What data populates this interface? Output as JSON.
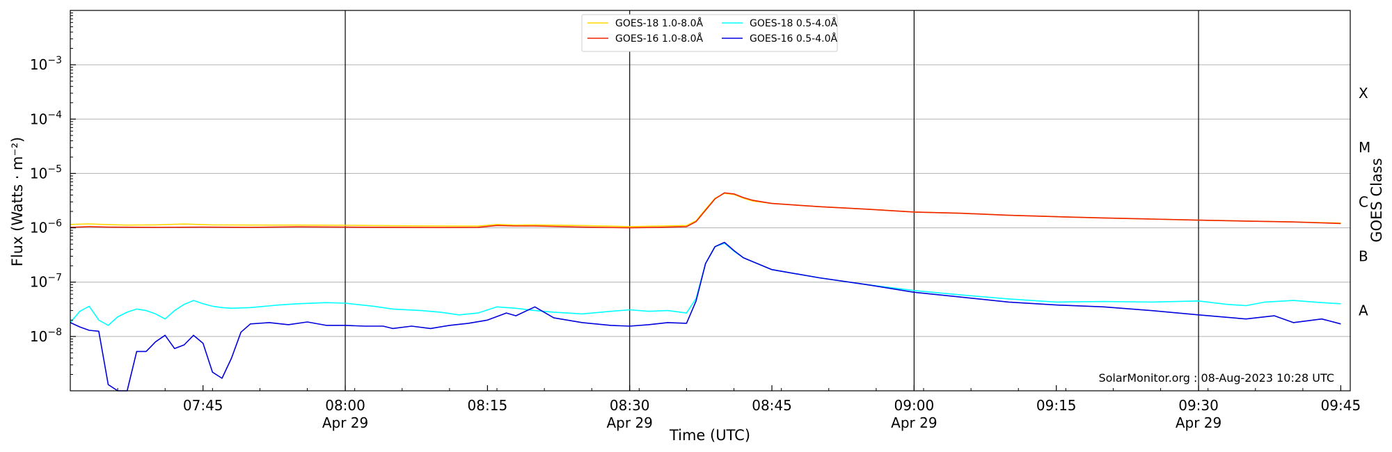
{
  "chart_data": {
    "type": "line",
    "title": "",
    "xlabel": "Time (UTC)",
    "ylabel": "Flux (Watts · m⁻²)",
    "y2label": "GOES Class",
    "y_scale": "log",
    "ylim": [
      1e-09,
      0.01
    ],
    "xlim": [
      "07:31",
      "09:46"
    ],
    "grid": "horizontal at decades",
    "legend_position": "top-center",
    "credit": "SolarMonitor.org : 08-Aug-2023 10:28 UTC",
    "y_ticks": [
      {
        "value": 1e-08,
        "base": "10",
        "exp": "−8"
      },
      {
        "value": 1e-07,
        "base": "10",
        "exp": "−7"
      },
      {
        "value": 1e-06,
        "base": "10",
        "exp": "−6"
      },
      {
        "value": 1e-05,
        "base": "10",
        "exp": "−5"
      },
      {
        "value": 0.0001,
        "base": "10",
        "exp": "−4"
      },
      {
        "value": 0.001,
        "base": "10",
        "exp": "−3"
      }
    ],
    "goes_classes": [
      {
        "label": "A",
        "value": 3e-08
      },
      {
        "label": "B",
        "value": 3e-07
      },
      {
        "label": "C",
        "value": 3e-06
      },
      {
        "label": "M",
        "value": 3e-05
      },
      {
        "label": "X",
        "value": 0.0003
      }
    ],
    "x_ticks": [
      {
        "time": "07:45",
        "label": "07:45",
        "date": ""
      },
      {
        "time": "08:00",
        "label": "08:00",
        "date": "Apr 29"
      },
      {
        "time": "08:15",
        "label": "08:15",
        "date": ""
      },
      {
        "time": "08:30",
        "label": "08:30",
        "date": "Apr 29"
      },
      {
        "time": "08:45",
        "label": "08:45",
        "date": ""
      },
      {
        "time": "09:00",
        "label": "09:00",
        "date": "Apr 29"
      },
      {
        "time": "09:15",
        "label": "09:15",
        "date": ""
      },
      {
        "time": "09:30",
        "label": "09:30",
        "date": "Apr 29"
      },
      {
        "time": "09:45",
        "label": "09:45",
        "date": ""
      }
    ],
    "vertical_lines": [
      "08:00",
      "08:30",
      "09:00",
      "09:30"
    ],
    "series": [
      {
        "name": "GOES-18 1.0-8.0Å",
        "color": "#ffd700",
        "x": [
          "07:31",
          "07:33",
          "07:35",
          "07:37",
          "07:40",
          "07:43",
          "07:46",
          "07:50",
          "07:55",
          "08:00",
          "08:05",
          "08:10",
          "08:14",
          "08:16",
          "08:18",
          "08:20",
          "08:25",
          "08:30",
          "08:33",
          "08:36",
          "08:37",
          "08:38",
          "08:39",
          "08:40",
          "08:41",
          "08:42",
          "08:43",
          "08:45",
          "08:50",
          "08:55",
          "09:00",
          "09:05",
          "09:10",
          "09:15",
          "09:20",
          "09:25",
          "09:30",
          "09:35",
          "09:40",
          "09:45"
        ],
        "y": [
          1.15e-06,
          1.18e-06,
          1.14e-06,
          1.12e-06,
          1.13e-06,
          1.17e-06,
          1.13e-06,
          1.12e-06,
          1.12e-06,
          1.11e-06,
          1.09e-06,
          1.08e-06,
          1.08e-06,
          1.15e-06,
          1.12e-06,
          1.13e-06,
          1.1e-06,
          1.05e-06,
          1.08e-06,
          1.1e-06,
          1.35e-06,
          2.2e-06,
          3.5e-06,
          4.3e-06,
          4.1e-06,
          3.5e-06,
          3.1e-06,
          2.8e-06,
          2.45e-06,
          2.2e-06,
          1.95e-06,
          1.85e-06,
          1.7e-06,
          1.6e-06,
          1.52e-06,
          1.45e-06,
          1.38e-06,
          1.33e-06,
          1.28e-06,
          1.22e-06
        ]
      },
      {
        "name": "GOES-16 1.0-8.0Å",
        "color": "#ee2200",
        "x": [
          "07:31",
          "07:33",
          "07:35",
          "07:40",
          "07:45",
          "07:50",
          "07:55",
          "08:00",
          "08:05",
          "08:10",
          "08:14",
          "08:16",
          "08:18",
          "08:20",
          "08:25",
          "08:30",
          "08:33",
          "08:36",
          "08:37",
          "08:38",
          "08:39",
          "08:40",
          "08:41",
          "08:42",
          "08:43",
          "08:45",
          "08:50",
          "08:55",
          "09:00",
          "09:05",
          "09:10",
          "09:15",
          "09:20",
          "09:25",
          "09:30",
          "09:35",
          "09:40",
          "09:45"
        ],
        "y": [
          1.02e-06,
          1.05e-06,
          1.03e-06,
          1.02e-06,
          1.03e-06,
          1.02e-06,
          1.04e-06,
          1.03e-06,
          1.02e-06,
          1.01e-06,
          1.02e-06,
          1.1e-06,
          1.08e-06,
          1.08e-06,
          1.03e-06,
          1e-06,
          1.02e-06,
          1.05e-06,
          1.3e-06,
          2.1e-06,
          3.4e-06,
          4.4e-06,
          4.2e-06,
          3.6e-06,
          3.2e-06,
          2.8e-06,
          2.45e-06,
          2.2e-06,
          1.95e-06,
          1.85e-06,
          1.7e-06,
          1.6e-06,
          1.52e-06,
          1.45e-06,
          1.38e-06,
          1.33e-06,
          1.28e-06,
          1.2e-06
        ]
      },
      {
        "name": "GOES-18 0.5-4.0Å",
        "color": "#00ffff",
        "x": [
          "07:31",
          "07:32",
          "07:33",
          "07:34",
          "07:35",
          "07:36",
          "07:37",
          "07:38",
          "07:39",
          "07:40",
          "07:41",
          "07:42",
          "07:43",
          "07:44",
          "07:45",
          "07:46",
          "07:47",
          "07:48",
          "07:50",
          "07:53",
          "07:55",
          "07:58",
          "08:00",
          "08:03",
          "08:05",
          "08:08",
          "08:10",
          "08:12",
          "08:14",
          "08:16",
          "08:18",
          "08:20",
          "08:22",
          "08:25",
          "08:28",
          "08:30",
          "08:32",
          "08:34",
          "08:36",
          "08:37",
          "08:38",
          "08:39",
          "08:40",
          "08:41",
          "08:42",
          "08:45",
          "08:50",
          "08:55",
          "09:00",
          "09:05",
          "09:10",
          "09:15",
          "09:20",
          "09:25",
          "09:30",
          "09:33",
          "09:35",
          "09:37",
          "09:40",
          "09:43",
          "09:45"
        ],
        "y": [
          1.8e-08,
          2.9e-08,
          3.6e-08,
          2e-08,
          1.6e-08,
          2.3e-08,
          2.8e-08,
          3.2e-08,
          3e-08,
          2.6e-08,
          2.1e-08,
          3e-08,
          3.9e-08,
          4.6e-08,
          4e-08,
          3.6e-08,
          3.4e-08,
          3.3e-08,
          3.4e-08,
          3.8e-08,
          4e-08,
          4.2e-08,
          4.1e-08,
          3.6e-08,
          3.2e-08,
          3e-08,
          2.8e-08,
          2.5e-08,
          2.7e-08,
          3.5e-08,
          3.3e-08,
          3e-08,
          2.8e-08,
          2.6e-08,
          2.9e-08,
          3.1e-08,
          2.9e-08,
          3e-08,
          2.7e-08,
          5e-08,
          2.2e-07,
          4.5e-07,
          5.2e-07,
          3.7e-07,
          2.8e-07,
          1.7e-07,
          1.2e-07,
          9e-08,
          7e-08,
          5.8e-08,
          4.9e-08,
          4.3e-08,
          4.4e-08,
          4.3e-08,
          4.5e-08,
          3.9e-08,
          3.7e-08,
          4.3e-08,
          4.6e-08,
          4.2e-08,
          4e-08
        ]
      },
      {
        "name": "GOES-16 0.5-4.0Å",
        "color": "#0000dd",
        "x": [
          "07:31",
          "07:32",
          "07:33",
          "07:34",
          "07:35",
          "07:36",
          "07:37",
          "07:38",
          "07:39",
          "07:40",
          "07:41",
          "07:42",
          "07:43",
          "07:44",
          "07:45",
          "07:46",
          "07:47",
          "07:48",
          "07:49",
          "07:50",
          "07:52",
          "07:54",
          "07:56",
          "07:58",
          "08:00",
          "08:02",
          "08:04",
          "08:05",
          "08:07",
          "08:09",
          "08:11",
          "08:13",
          "08:15",
          "08:17",
          "08:18",
          "08:20",
          "08:22",
          "08:25",
          "08:28",
          "08:30",
          "08:32",
          "08:34",
          "08:36",
          "08:37",
          "08:38",
          "08:39",
          "08:40",
          "08:41",
          "08:42",
          "08:45",
          "08:50",
          "08:55",
          "09:00",
          "09:05",
          "09:10",
          "09:15",
          "09:20",
          "09:25",
          "09:30",
          "09:35",
          "09:38",
          "09:40",
          "09:43",
          "09:45"
        ],
        "y": [
          1.8e-08,
          1.5e-08,
          1.3e-08,
          1.25e-08,
          1.3e-09,
          1e-09,
          1e-09,
          5.3e-09,
          5.3e-09,
          8e-09,
          1.05e-08,
          6e-09,
          7e-09,
          1.05e-08,
          7.5e-09,
          2.2e-09,
          1.7e-09,
          4e-09,
          1.2e-08,
          1.7e-08,
          1.8e-08,
          1.65e-08,
          1.85e-08,
          1.6e-08,
          1.6e-08,
          1.55e-08,
          1.55e-08,
          1.4e-08,
          1.55e-08,
          1.4e-08,
          1.6e-08,
          1.75e-08,
          2e-08,
          2.7e-08,
          2.4e-08,
          3.5e-08,
          2.2e-08,
          1.8e-08,
          1.6e-08,
          1.55e-08,
          1.65e-08,
          1.8e-08,
          1.75e-08,
          4.5e-08,
          2.2e-07,
          4.5e-07,
          5.4e-07,
          3.8e-07,
          2.8e-07,
          1.7e-07,
          1.2e-07,
          9e-08,
          6.5e-08,
          5.3e-08,
          4.3e-08,
          3.8e-08,
          3.5e-08,
          3e-08,
          2.5e-08,
          2.1e-08,
          2.4e-08,
          1.8e-08,
          2.1e-08,
          1.7e-08
        ]
      }
    ]
  }
}
